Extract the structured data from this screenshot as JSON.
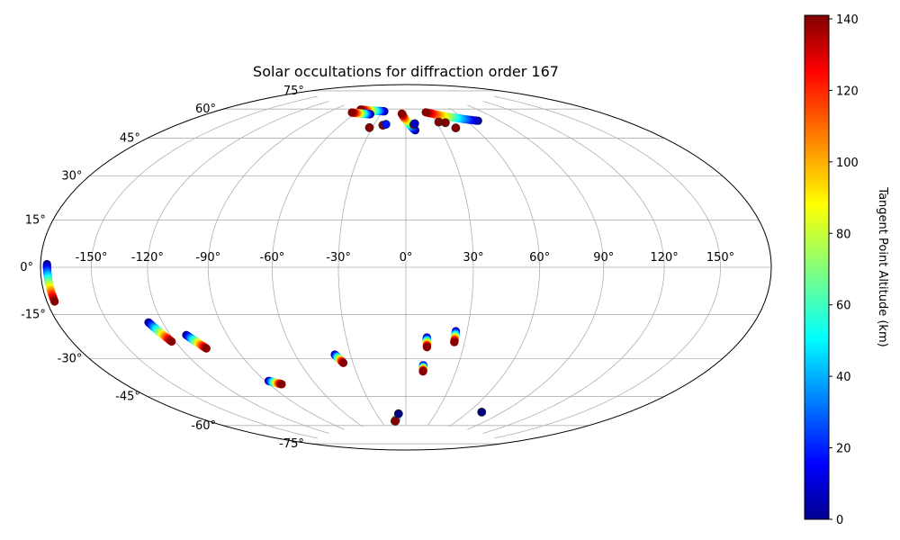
{
  "chart_data": {
    "type": "scatter",
    "projection": "Hammer / Aitoff-style elliptical world map",
    "title": "Solar occultations for diffraction order 167",
    "grid": true,
    "x_ticks": [
      "-150°",
      "-120°",
      "-90°",
      "-60°",
      "-30°",
      "0°",
      "30°",
      "60°",
      "90°",
      "120°",
      "150°"
    ],
    "y_ticks": [
      "-75°",
      "-60°",
      "-45°",
      "-30°",
      "-15°",
      "0°",
      "15°",
      "30°",
      "45°",
      "60°",
      "75°"
    ],
    "colorbar": {
      "label": "Tangent Point Altitude (km)",
      "colormap": "jet",
      "range": [
        0,
        141
      ],
      "ticks": [
        "0",
        "20",
        "40",
        "60",
        "80",
        "100",
        "120",
        "140"
      ]
    },
    "tracks": [
      {
        "lon": [
          -176.0,
          -175.2
        ],
        "lat": [
          1.0,
          -11.0
        ],
        "alt": [
          0,
          140
        ]
      },
      {
        "lon": [
          -127.5,
          -122.0
        ],
        "lat": [
          -21.0,
          -29.0
        ],
        "alt": [
          0,
          140
        ]
      },
      {
        "lon": [
          -111.5,
          -106.0
        ],
        "lat": [
          -27.0,
          -33.0
        ],
        "alt": [
          0,
          140
        ]
      },
      {
        "lon": [
          -88.0,
          -82.0
        ],
        "lat": [
          -49.0,
          -51.0
        ],
        "alt": [
          0,
          140
        ]
      },
      {
        "lon": [
          -38.5,
          -35.5
        ],
        "lat": [
          -39.0,
          -43.0
        ],
        "alt": [
          0,
          140
        ]
      },
      {
        "lon": [
          -11.5,
          -13.5
        ],
        "lat": [
          -72.0,
          -73.0
        ],
        "alt": [
          0,
          140
        ]
      },
      {
        "lon": [
          10.5,
          11.0
        ],
        "lat": [
          -31.5,
          -36.0
        ],
        "alt": [
          0,
          140
        ]
      },
      {
        "lon": [
          10.0,
          10.3
        ],
        "lat": [
          -44.5,
          -47.5
        ],
        "alt": [
          0,
          140
        ]
      },
      {
        "lon": [
          24.5,
          24.7
        ],
        "lat": [
          -28.5,
          -33.5
        ],
        "alt": [
          0,
          140
        ]
      },
      {
        "lon": [
          8.0,
          -5.0
        ],
        "lat": [
          64.0,
          73.0
        ],
        "alt": [
          0,
          140
        ]
      },
      {
        "lon": [
          71.0,
          25.0
        ],
        "lat": [
          67.0,
          73.5
        ],
        "alt": [
          0,
          140
        ]
      },
      {
        "lon": [
          -28.0,
          -60.0
        ],
        "lat": [
          74.0,
          74.0
        ],
        "alt": [
          0,
          140
        ]
      },
      {
        "lon": [
          -42.0,
          -65.0
        ],
        "lat": [
          72.0,
          72.0
        ],
        "alt": [
          0,
          140
        ]
      }
    ],
    "points": [
      {
        "lon": -7.5,
        "lat": -69.0,
        "alt": 0
      },
      {
        "lon": -13.0,
        "lat": -73.0,
        "alt": 140
      },
      {
        "lon": 72.0,
        "lat": -66.0,
        "alt": 0
      },
      {
        "lon": -32.5,
        "lat": 65.0,
        "alt": 140
      },
      {
        "lon": -21.5,
        "lat": 66.5,
        "alt": 140
      },
      {
        "lon": -19.0,
        "lat": 67.0,
        "alt": 20
      },
      {
        "lon": 7.5,
        "lat": 67.0,
        "alt": 140
      },
      {
        "lon": 8.5,
        "lat": 67.5,
        "alt": 10
      },
      {
        "lon": 32.5,
        "lat": 68.0,
        "alt": 140
      },
      {
        "lon": 38.5,
        "lat": 67.5,
        "alt": 140
      },
      {
        "lon": 44.0,
        "lat": 64.5,
        "alt": 140
      }
    ]
  }
}
